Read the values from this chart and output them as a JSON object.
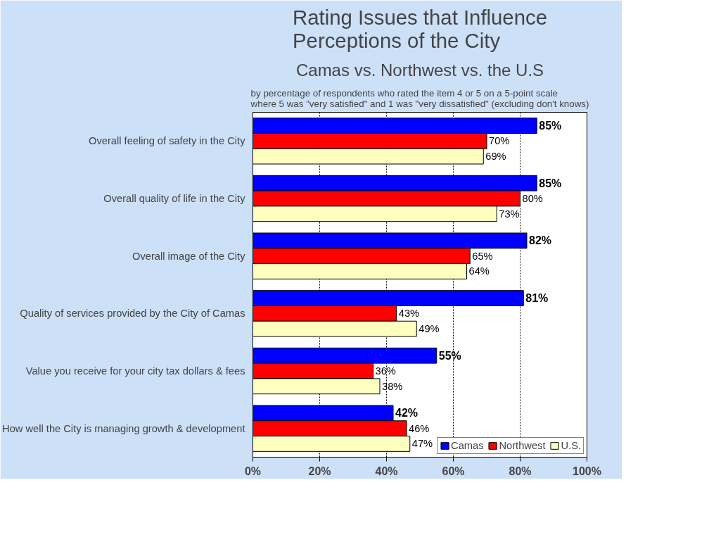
{
  "chart_data": {
    "type": "bar",
    "orientation": "horizontal",
    "title": "Rating Issues that Influence\nPerceptions of the City",
    "subtitle": "Camas vs. Northwest vs. the U.S",
    "annotations": [
      "by percentage of respondents who rated the item 4 or 5 on a 5-point scale\nwhere 5 was \"very satisfied\" and 1 was \"very dissatisfied\" (excluding don't knows)"
    ],
    "categories": [
      "Overall feeling of safety in the City",
      "Overall quality of life in the City",
      "Overall image of the City",
      "Quality of services provided by the City of Camas",
      "Value you receive for your city tax dollars & fees",
      "How well the City is managing growth & development"
    ],
    "series": [
      {
        "name": "Camas",
        "color": "#0000ff",
        "values": [
          85,
          85,
          82,
          81,
          55,
          42
        ],
        "value_labels": [
          "85%",
          "85%",
          "82%",
          "81%",
          "55%",
          "42%"
        ]
      },
      {
        "name": "Northwest",
        "color": "#ff0000",
        "values": [
          70,
          80,
          65,
          43,
          36,
          46
        ],
        "value_labels": [
          "70%",
          "80%",
          "65%",
          "43%",
          "36%",
          "46%"
        ]
      },
      {
        "name": "U.S.",
        "color": "#ffffc0",
        "values": [
          69,
          73,
          64,
          49,
          38,
          47
        ],
        "value_labels": [
          "69%",
          "73%",
          "64%",
          "49%",
          "38%",
          "47%"
        ]
      }
    ],
    "xlim": [
      0,
      100
    ],
    "xticks": [
      {
        "value": 0,
        "label": "0%"
      },
      {
        "value": 20,
        "label": "20%"
      },
      {
        "value": 40,
        "label": "40%"
      },
      {
        "value": 60,
        "label": "60%"
      },
      {
        "value": 80,
        "label": "80%"
      },
      {
        "value": 100,
        "label": "100%"
      }
    ],
    "grid": "x",
    "legend": "bottom right"
  }
}
